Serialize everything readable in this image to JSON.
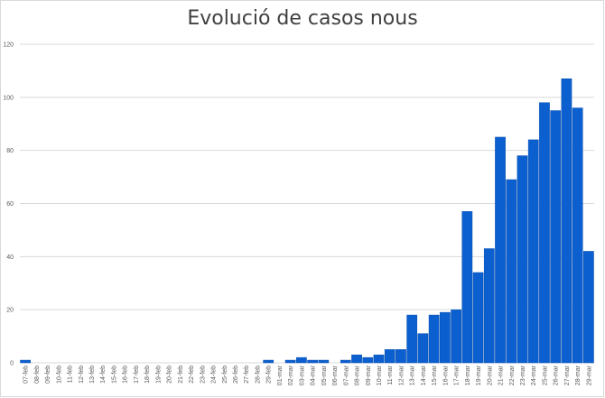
{
  "chart_data": {
    "type": "bar",
    "title": "Evolució de casos nous",
    "xlabel": "",
    "ylabel": "",
    "ylim": [
      0,
      120
    ],
    "yticks": [
      0,
      20,
      40,
      60,
      80,
      100,
      120
    ],
    "grid": true,
    "legend": "none",
    "bar_color": "#0b5fcf",
    "categories": [
      "07-feb",
      "08-feb",
      "09-feb",
      "10-feb",
      "11-feb",
      "12-feb",
      "13-feb",
      "14-feb",
      "15-feb",
      "16-feb",
      "17-feb",
      "18-feb",
      "19-feb",
      "20-feb",
      "21-feb",
      "22-feb",
      "23-feb",
      "24-feb",
      "25-feb",
      "26-feb",
      "27-feb",
      "28-feb",
      "29-feb",
      "01-mar",
      "02-mar",
      "03-mar",
      "04-mar",
      "05-mar",
      "06-mar",
      "07-mar",
      "08-mar",
      "09-mar",
      "10-mar",
      "11-mar",
      "12-mar",
      "13-mar",
      "14-mar",
      "15-mar",
      "16-mar",
      "17-mar",
      "18-mar",
      "19-mar",
      "20-mar",
      "21-mar",
      "22-mar",
      "23-mar",
      "24-mar",
      "25-mar",
      "26-mar",
      "27-mar",
      "28-mar",
      "29-mar"
    ],
    "values": [
      1,
      0,
      0,
      0,
      0,
      0,
      0,
      0,
      0,
      0,
      0,
      0,
      0,
      0,
      0,
      0,
      0,
      0,
      0,
      0,
      0,
      0,
      1,
      0,
      1,
      2,
      1,
      1,
      0,
      1,
      3,
      2,
      3,
      5,
      5,
      18,
      11,
      18,
      19,
      20,
      57,
      34,
      43,
      85,
      69,
      78,
      84,
      98,
      95,
      107,
      96,
      42
    ]
  }
}
